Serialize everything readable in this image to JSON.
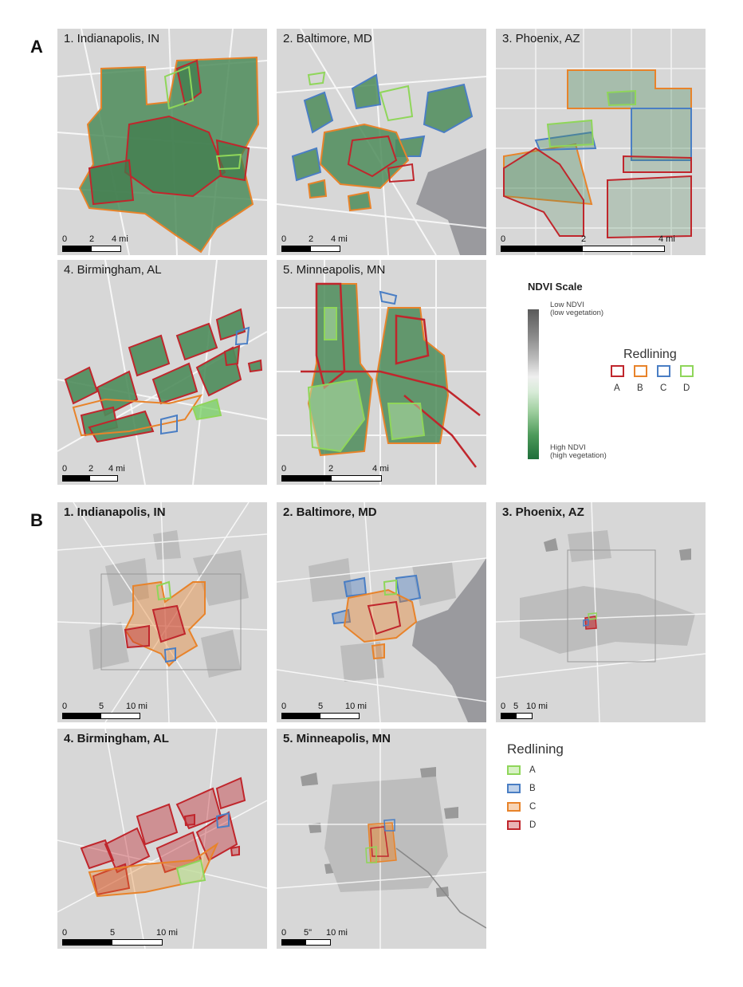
{
  "panels": {
    "a": "A",
    "b": "B"
  },
  "maps_a": [
    {
      "title": "1. Indianapolis, IN",
      "scale": [
        "0",
        "2",
        "4 mi"
      ]
    },
    {
      "title": "2. Baltimore, MD",
      "scale": [
        "0",
        "2",
        "4 mi"
      ]
    },
    {
      "title": "3. Phoenix, AZ",
      "scale": [
        "0",
        "2",
        "4 mi"
      ]
    },
    {
      "title": "4. Birmingham, AL",
      "scale": [
        "0",
        "2",
        "4 mi"
      ]
    },
    {
      "title": "5. Minneapolis, MN",
      "scale": [
        "0",
        "2",
        "4 mi"
      ]
    }
  ],
  "maps_b": [
    {
      "title": "1. Indianapolis, IN",
      "scale": [
        "0",
        "5",
        "10 mi"
      ]
    },
    {
      "title": "2. Baltimore, MD",
      "scale": [
        "0",
        "5",
        "10 mi"
      ]
    },
    {
      "title": "3. Phoenix, AZ",
      "scale": [
        "0",
        "5",
        "10 mi"
      ]
    },
    {
      "title": "4. Birmingham, AL",
      "scale": [
        "0",
        "5",
        "10 mi"
      ]
    },
    {
      "title": "5. Minneapolis, MN",
      "scale": [
        "0",
        "5\"",
        "10 mi"
      ]
    }
  ],
  "legend_a": {
    "ndvi_title": "NDVI Scale",
    "low_line1": "Low NDVI",
    "low_line2": "(low vegetation)",
    "high_line1": "High NDVI",
    "high_line2": "(high vegetation)",
    "redlining_title": "Redlining",
    "items": [
      "A",
      "B",
      "C",
      "D"
    ]
  },
  "legend_b": {
    "redlining_title": "Redlining",
    "items": [
      "A",
      "B",
      "C",
      "D"
    ]
  },
  "colors": {
    "grade_a_legend_a": "#c0262c",
    "grade_b_legend_a": "#e8832a",
    "grade_c_legend_a": "#4a7ec4",
    "grade_d_legend_a": "#8fd65a",
    "grade_a_legend_b": "#8fd65a",
    "grade_b_legend_b": "#4a7ec4",
    "grade_c_legend_b": "#e8832a",
    "grade_d_legend_b": "#c0262c",
    "vegetation": "#4e8c5b",
    "map_base": "#d7d7d7"
  }
}
